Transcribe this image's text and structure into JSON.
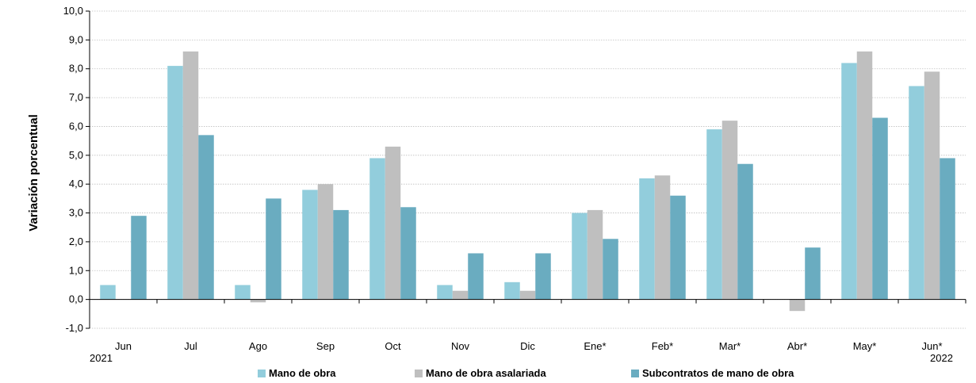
{
  "chart_data": {
    "type": "bar",
    "ylabel": "Variación porcentual",
    "ylim": [
      -1,
      10
    ],
    "yticks": [
      "-1,0",
      "0,0",
      "1,0",
      "2,0",
      "3,0",
      "4,0",
      "5,0",
      "6,0",
      "7,0",
      "8,0",
      "9,0",
      "10,0"
    ],
    "categories": [
      "Jun",
      "Jul",
      "Ago",
      "Sep",
      "Oct",
      "Nov",
      "Dic",
      "Ene*",
      "Feb*",
      "Mar*",
      "Abr*",
      "May*",
      "Jun*"
    ],
    "year_labels": [
      {
        "category": "Jun",
        "label": "2021"
      },
      {
        "category": "Jun*",
        "label": "2022"
      }
    ],
    "grid": true,
    "legend_position": "bottom",
    "series": [
      {
        "name": "Mano de obra",
        "color": "#92CDDC",
        "values": [
          0.5,
          8.1,
          0.5,
          3.8,
          4.9,
          0.5,
          0.6,
          3.0,
          4.2,
          5.9,
          0.0,
          8.2,
          7.4
        ]
      },
      {
        "name": "Mano de obra asalariada",
        "color": "#BFBFBF",
        "values": [
          0.0,
          8.6,
          -0.1,
          4.0,
          5.3,
          0.3,
          0.3,
          3.1,
          4.3,
          6.2,
          -0.4,
          8.6,
          7.9
        ]
      },
      {
        "name": "Subcontratos de mano de obra",
        "color": "#6AACC0",
        "values": [
          2.9,
          5.7,
          3.5,
          3.1,
          3.2,
          1.6,
          1.6,
          2.1,
          3.6,
          4.7,
          1.8,
          6.3,
          4.9
        ]
      }
    ]
  }
}
